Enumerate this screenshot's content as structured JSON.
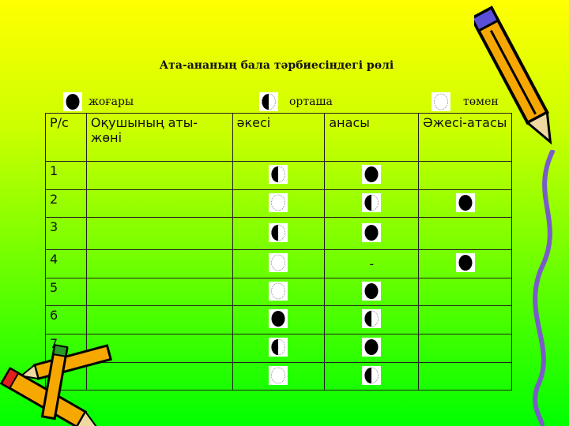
{
  "title": "Ата-ананың бала тәрбиесіндегі рөлі",
  "legend": [
    {
      "mark": "full",
      "label": "жоғары"
    },
    {
      "mark": "half",
      "label": "орташа"
    },
    {
      "mark": "empty",
      "label": "төмен"
    }
  ],
  "table": {
    "headers": [
      "Р/с",
      "Оқушының аты-жөні",
      "әкесі",
      "анасы",
      "Әжесі-атасы"
    ],
    "rows": [
      {
        "n": "1",
        "name": "",
        "father": "half",
        "mother": "full",
        "grand": ""
      },
      {
        "n": "2",
        "name": "",
        "father": "empty",
        "mother": "half",
        "grand": "full"
      },
      {
        "n": "3",
        "name": "",
        "father": "half",
        "mother": "full",
        "grand": ""
      },
      {
        "n": "4",
        "name": "",
        "father": "empty",
        "mother": "-",
        "grand": "full"
      },
      {
        "n": "5",
        "name": "",
        "father": "empty",
        "mother": "full",
        "grand": ""
      },
      {
        "n": "6",
        "name": "",
        "father": "full",
        "mother": "half",
        "grand": ""
      },
      {
        "n": "7",
        "name": "",
        "father": "half",
        "mother": "full",
        "grand": ""
      },
      {
        "n": "",
        "name": "",
        "father": "empty",
        "mother": "half",
        "grand": ""
      }
    ]
  },
  "colors": {
    "top": "#ffff00",
    "bottom": "#00ff00",
    "line": "#222222"
  }
}
